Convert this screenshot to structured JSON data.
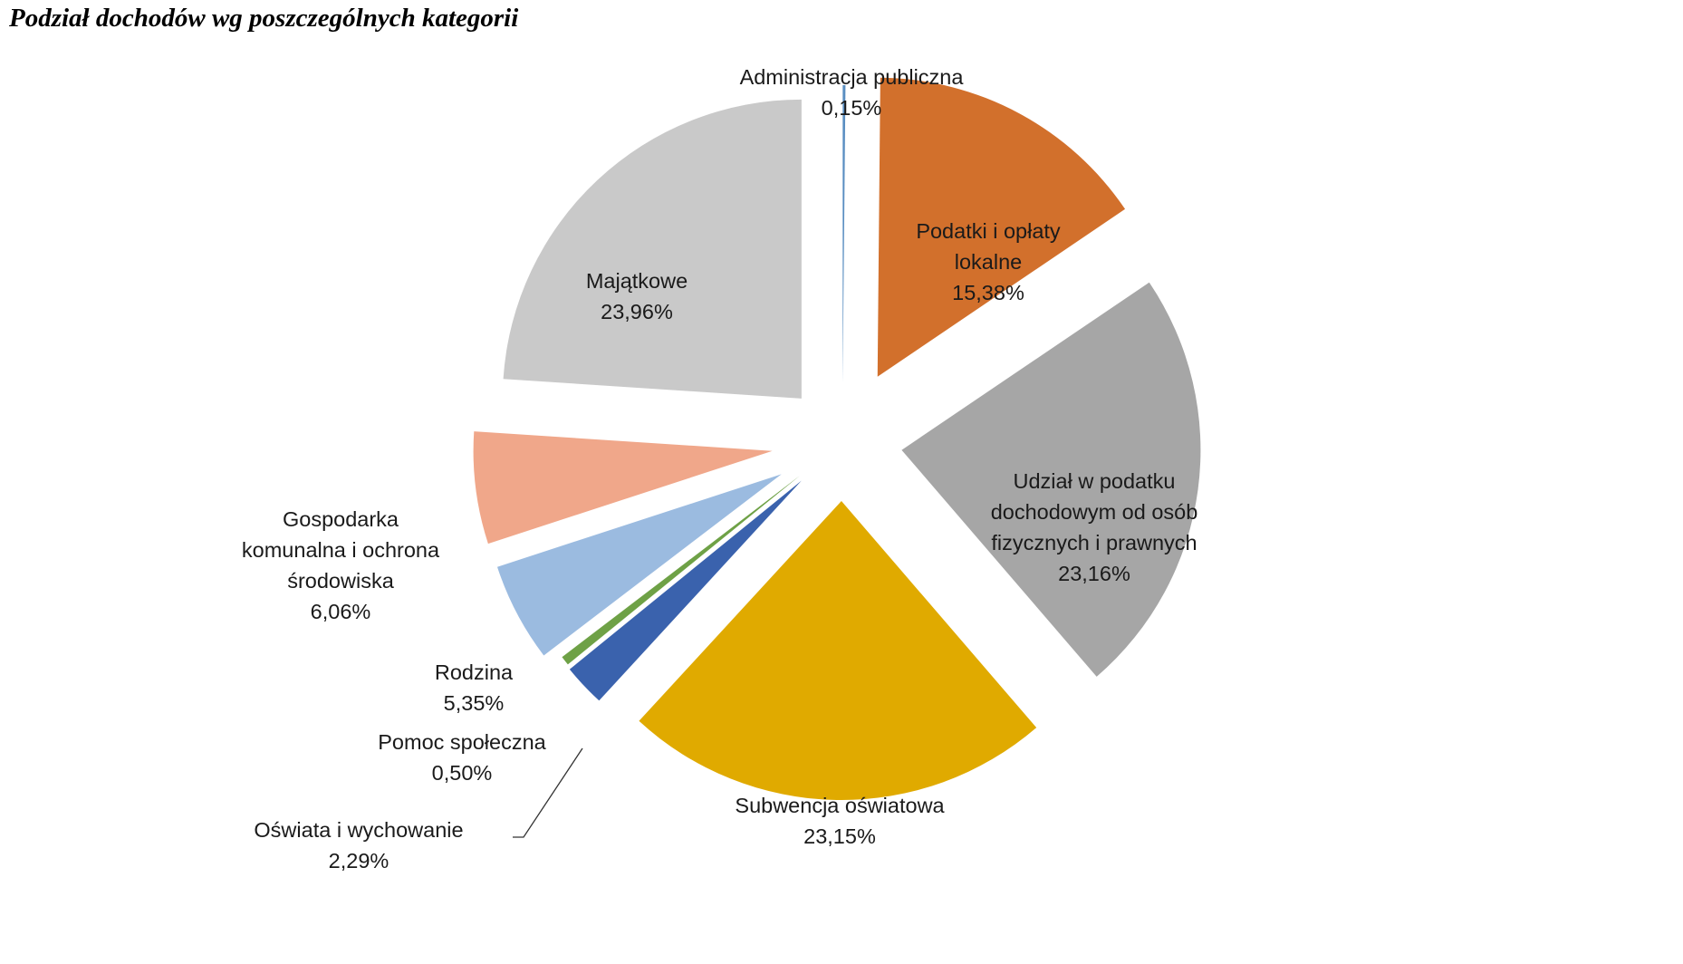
{
  "chart_data": {
    "type": "pie",
    "title": "Podział dochodów wg poszczególnych kategorii",
    "categories": [
      "Administracja publiczna",
      "Podatki i opłaty lokalne",
      "Udział w podatku dochodowym od osób fizycznych i prawnych",
      "Subwencja oświatowa",
      "Oświata i wychowanie",
      "Pomoc społeczna",
      "Rodzina",
      "Gospodarka komunalna i ochrona środowiska",
      "Majątkowe"
    ],
    "values": [
      0.15,
      15.38,
      23.16,
      23.15,
      2.29,
      0.5,
      5.35,
      6.06,
      23.96
    ],
    "value_labels": [
      "0,15%",
      "15,38%",
      "23,16%",
      "23,15%",
      "2,29%",
      "0,50%",
      "5,35%",
      "6,06%",
      "23,96%"
    ],
    "label_lines": [
      [
        "Administracja publiczna",
        "0,15%"
      ],
      [
        "Podatki i opłaty",
        "lokalne",
        "15,38%"
      ],
      [
        "Udział w podatku",
        "dochodowym od osób",
        "fizycznych i prawnych",
        "23,16%"
      ],
      [
        "Subwencja oświatowa",
        "23,15%"
      ],
      [
        "Oświata i wychowanie",
        "2,29%"
      ],
      [
        "Pomoc społeczna",
        "0,50%"
      ],
      [
        "Rodzina",
        "5,35%"
      ],
      [
        "Gospodarka",
        "komunalna i ochrona",
        "środowiska",
        "6,06%"
      ],
      [
        "Majątkowe",
        "23,96%"
      ]
    ],
    "colors": [
      "#5b8fc2",
      "#d2702c",
      "#a6a6a6",
      "#e0aa00",
      "#3a62ad",
      "#6ea146",
      "#9bbbe0",
      "#f0a78a",
      "#c9c9c9"
    ],
    "exploded": true,
    "legend": "none"
  }
}
